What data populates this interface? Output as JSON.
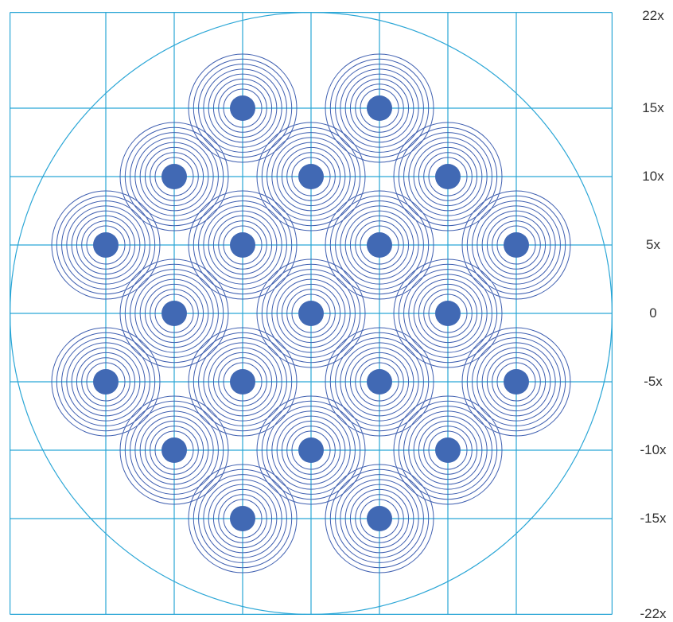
{
  "y_axis": {
    "tick_labels": [
      {
        "value": 22,
        "label": "22x"
      },
      {
        "value": 15,
        "label": "15x"
      },
      {
        "value": 10,
        "label": "10x"
      },
      {
        "value": 5,
        "label": "5x"
      },
      {
        "value": 0,
        "label": "0"
      },
      {
        "value": -5,
        "label": "-5x"
      },
      {
        "value": -10,
        "label": "-10x"
      },
      {
        "value": -15,
        "label": "-15x"
      },
      {
        "value": -22,
        "label": "-22x"
      }
    ]
  },
  "grid": {
    "x_lines": [
      -22,
      -15,
      -10,
      -5,
      0,
      5,
      10,
      15,
      22
    ],
    "y_lines": [
      -22,
      -15,
      -10,
      -5,
      0,
      5,
      10,
      15,
      22
    ]
  },
  "boundary_circle": {
    "center": [
      0,
      0
    ],
    "radius": 22
  },
  "spot_pattern": {
    "rings_per_spot": 8,
    "spots": [
      {
        "x": -5,
        "y": 15
      },
      {
        "x": 5,
        "y": 15
      },
      {
        "x": -10,
        "y": 10
      },
      {
        "x": 0,
        "y": 10
      },
      {
        "x": 10,
        "y": 10
      },
      {
        "x": -15,
        "y": 5
      },
      {
        "x": -5,
        "y": 5
      },
      {
        "x": 5,
        "y": 5
      },
      {
        "x": 15,
        "y": 5
      },
      {
        "x": -10,
        "y": 0
      },
      {
        "x": 0,
        "y": 0
      },
      {
        "x": 10,
        "y": 0
      },
      {
        "x": -15,
        "y": -5
      },
      {
        "x": -5,
        "y": -5
      },
      {
        "x": 5,
        "y": -5
      },
      {
        "x": 15,
        "y": -5
      },
      {
        "x": -10,
        "y": -10
      },
      {
        "x": 0,
        "y": -10
      },
      {
        "x": 10,
        "y": -10
      },
      {
        "x": -5,
        "y": -15
      },
      {
        "x": 5,
        "y": -15
      }
    ]
  },
  "colors": {
    "grid": "#2aa6d6",
    "spot": "#4169b4",
    "ring": "#3f5fb0",
    "label": "#333333"
  }
}
